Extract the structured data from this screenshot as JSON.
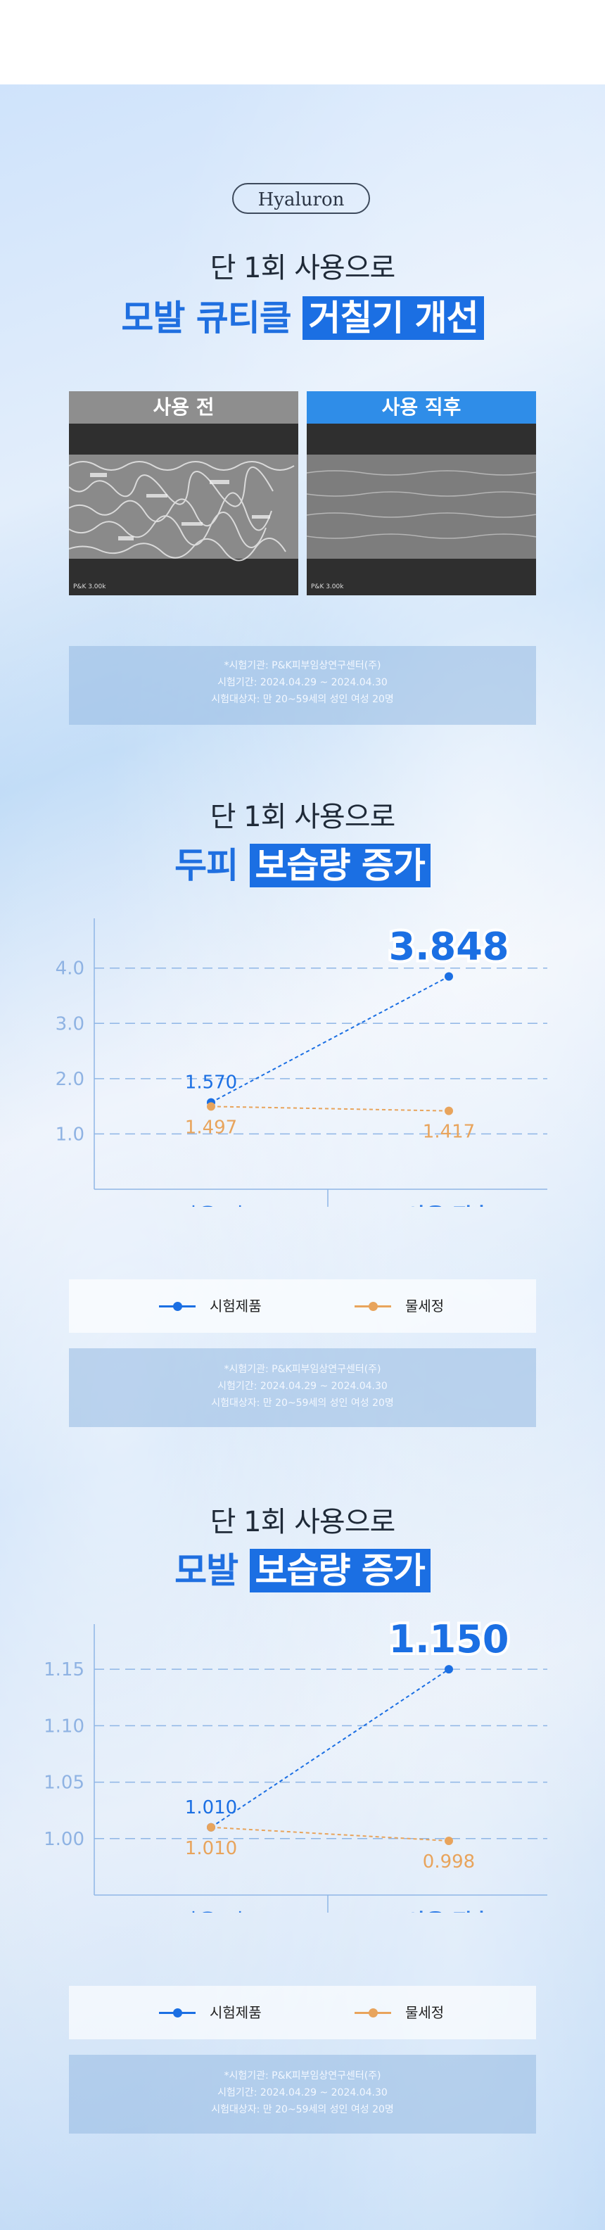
{
  "badge": "Hyaluron",
  "section1": {
    "subtitle": "단 1회 사용으로",
    "title_plain": "모발 큐티클",
    "title_highlight": "거칠기 개선",
    "before_label": "사용 전",
    "after_label": "사용 직후",
    "photo_tag": "P&K 3.00k",
    "notice": [
      "*시험기관: P&K피부임상연구센터(주)",
      "시험기간: 2024.04.29 ~ 2024.04.30",
      "시험대상자: 만 20~59세의 성인 여성 20명"
    ]
  },
  "section2": {
    "subtitle": "단 1회 사용으로",
    "title_plain": "두피",
    "title_highlight": "보습량 증가",
    "legend": {
      "test": "시험제품",
      "water": "물세정"
    },
    "notice": [
      "*시험기관: P&K피부임상연구센터(주)",
      "시험기간: 2024.04.29 ~ 2024.04.30",
      "시험대상자: 만 20~59세의 성인 여성 20명"
    ]
  },
  "section3": {
    "subtitle": "단 1회 사용으로",
    "title_plain": "모발",
    "title_highlight": "보습량 증가",
    "legend": {
      "test": "시험제품",
      "water": "물세정"
    },
    "notice": [
      "*시험기관: P&K피부임상연구센터(주)",
      "시험기간: 2024.04.29 ~ 2024.04.30",
      "시험대상자: 만 20~59세의 성인 여성 20명"
    ]
  },
  "colors": {
    "accent": "#1b6fe3",
    "orange": "#e8a45c",
    "axis": "#8fb6e6"
  },
  "chart_data": [
    {
      "type": "line",
      "categories": [
        "사용 전",
        "사용 직후"
      ],
      "series": [
        {
          "name": "시험제품",
          "values": [
            1.57,
            3.848
          ],
          "labels": [
            "1.570",
            "3.848"
          ],
          "color": "#1b6fe3"
        },
        {
          "name": "물세정",
          "values": [
            1.497,
            1.417
          ],
          "labels": [
            "1.497",
            "1.417"
          ],
          "color": "#e8a45c"
        }
      ],
      "yticks": [
        "4.0",
        "3.0",
        "2.0",
        "1.0"
      ],
      "ytick_values": [
        4.0,
        3.0,
        2.0,
        1.0
      ],
      "ylim": [
        0,
        4.9
      ],
      "grid": true,
      "legend": "bottom"
    },
    {
      "type": "line",
      "categories": [
        "사용 전",
        "사용 직후"
      ],
      "series": [
        {
          "name": "시험제품",
          "values": [
            1.01,
            1.15
          ],
          "labels": [
            "1.010",
            "1.150"
          ],
          "color": "#1b6fe3"
        },
        {
          "name": "물세정",
          "values": [
            1.01,
            0.998
          ],
          "labels": [
            "1.010",
            "0.998"
          ],
          "color": "#e8a45c"
        }
      ],
      "yticks": [
        "1.15",
        "1.10",
        "1.05",
        "1.00"
      ],
      "ytick_values": [
        1.15,
        1.1,
        1.05,
        1.0
      ],
      "ylim": [
        0.95,
        1.19
      ],
      "grid": true,
      "legend": "bottom"
    }
  ]
}
